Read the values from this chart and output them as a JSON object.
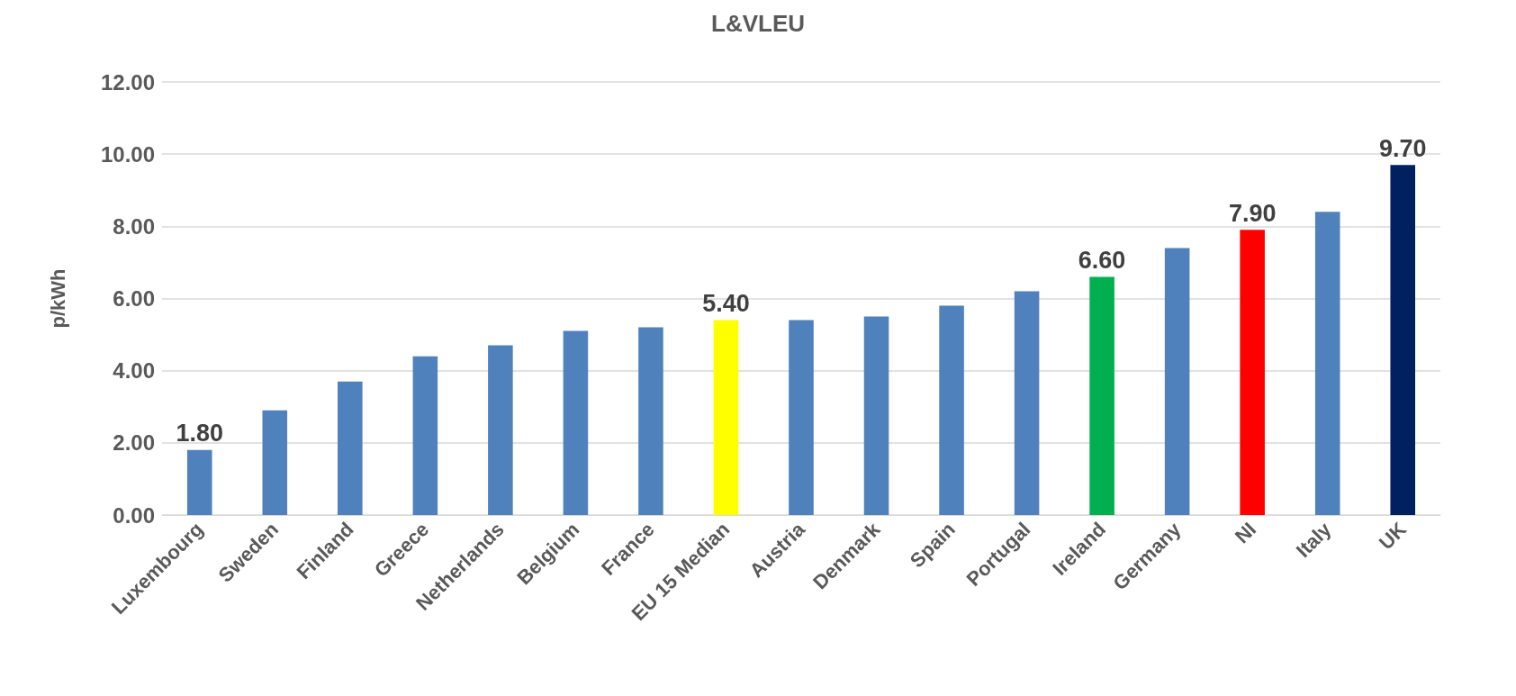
{
  "chart_data": {
    "type": "bar",
    "title": "L&VLEU",
    "ylabel": "p/kWh",
    "categories": [
      "Luxembourg",
      "Sweden",
      "Finland",
      "Greece",
      "Netherlands",
      "Belgium",
      "France",
      "EU 15 Median",
      "Austria",
      "Denmark",
      "Spain",
      "Portugal",
      "Ireland",
      "Germany",
      "NI",
      "Italy",
      "UK"
    ],
    "values": [
      1.8,
      2.9,
      3.7,
      4.4,
      4.7,
      5.1,
      5.2,
      5.4,
      5.4,
      5.5,
      5.8,
      6.2,
      6.6,
      7.4,
      7.9,
      8.4,
      9.7
    ],
    "colors": [
      "#4f81bd",
      "#4f81bd",
      "#4f81bd",
      "#4f81bd",
      "#4f81bd",
      "#4f81bd",
      "#4f81bd",
      "#ffff00",
      "#4f81bd",
      "#4f81bd",
      "#4f81bd",
      "#4f81bd",
      "#00b050",
      "#4f81bd",
      "#ff0000",
      "#4f81bd",
      "#002060"
    ],
    "value_labels": [
      "1.80",
      null,
      null,
      null,
      null,
      null,
      null,
      "5.40",
      null,
      null,
      null,
      null,
      "6.60",
      null,
      "7.90",
      null,
      "9.70"
    ],
    "ylim": [
      0,
      12
    ],
    "yticks": [
      {
        "value": 0,
        "label": "0.00"
      },
      {
        "value": 2,
        "label": "2.00"
      },
      {
        "value": 4,
        "label": "4.00"
      },
      {
        "value": 6,
        "label": "6.00"
      },
      {
        "value": 8,
        "label": "8.00"
      },
      {
        "value": 10,
        "label": "10.00"
      },
      {
        "value": 12,
        "label": "12.00"
      }
    ],
    "grid": "y"
  }
}
